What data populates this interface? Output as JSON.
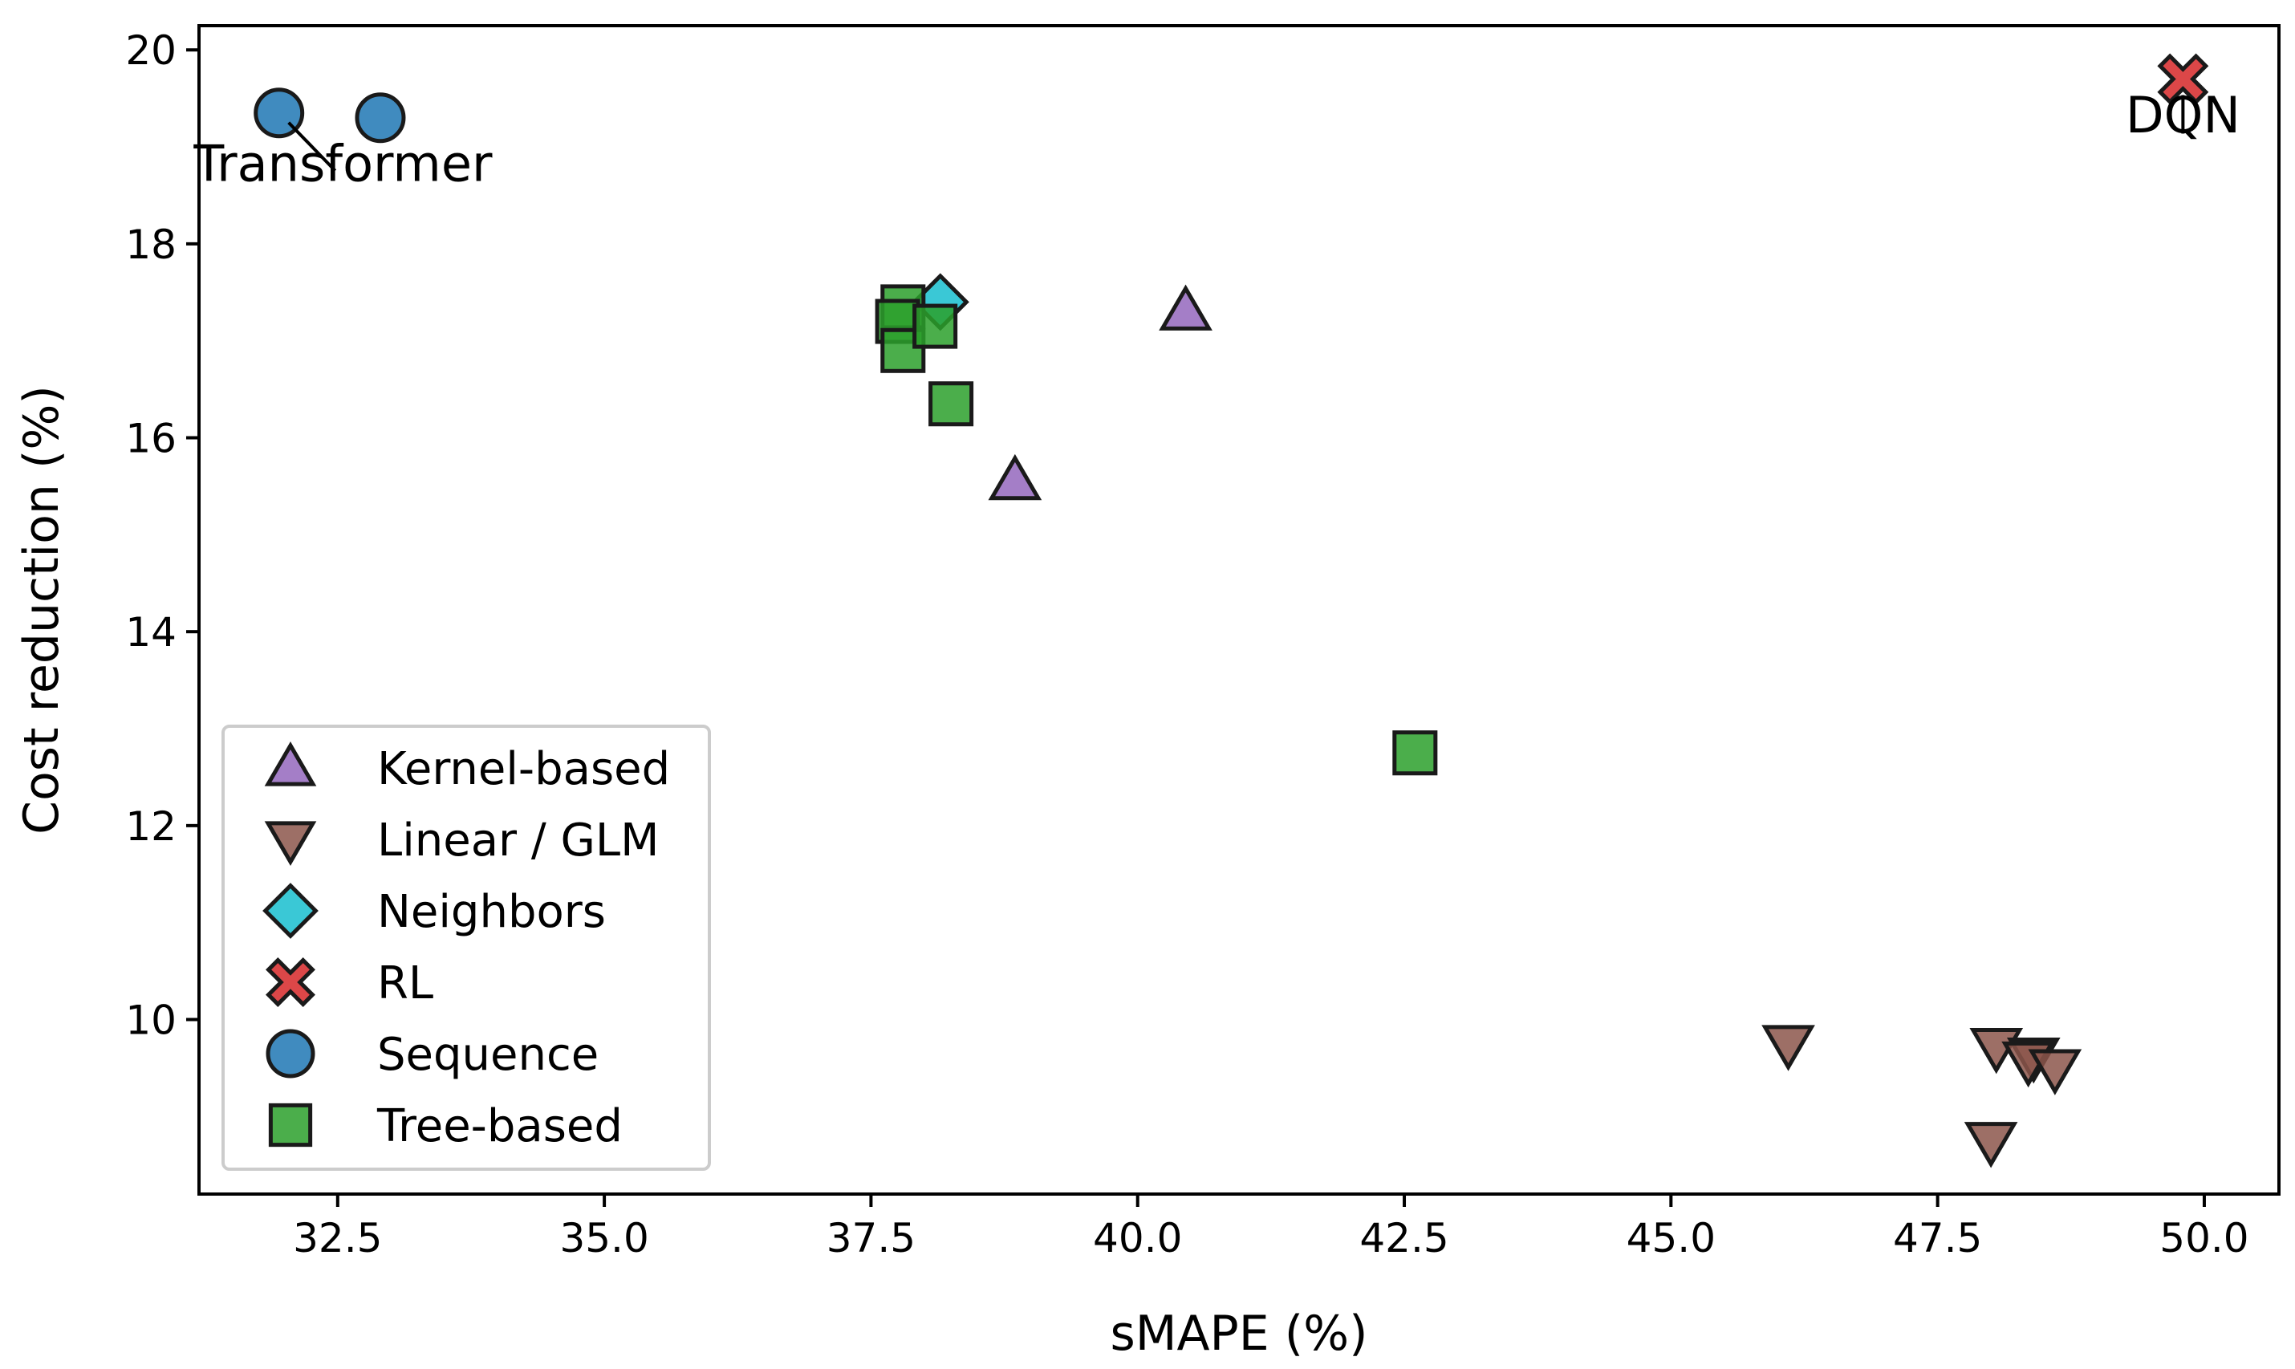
{
  "chart_data": {
    "type": "scatter",
    "title": "",
    "xlabel": "sMAPE (%)",
    "ylabel": "Cost reduction (%)",
    "xlim": [
      31.2,
      50.7
    ],
    "ylim": [
      8.2,
      20.25
    ],
    "xticks": [
      32.5,
      35.0,
      37.5,
      40.0,
      42.5,
      45.0,
      47.5,
      50.0
    ],
    "xtick_labels": [
      "32.5",
      "35.0",
      "37.5",
      "40.0",
      "42.5",
      "45.0",
      "47.5",
      "50.0"
    ],
    "yticks": [
      10,
      12,
      14,
      16,
      18,
      20
    ],
    "ytick_labels": [
      "10",
      "12",
      "14",
      "16",
      "18",
      "20"
    ],
    "grid": false,
    "legend_position": "lower-left",
    "series": [
      {
        "name": "Kernel-based",
        "marker": "triangle-up",
        "color": "#9467bd",
        "points": [
          [
            40.45,
            17.3
          ],
          [
            38.85,
            15.55
          ]
        ]
      },
      {
        "name": "Linear / GLM",
        "marker": "triangle-down",
        "color": "#8c564b",
        "points": [
          [
            46.1,
            9.75
          ],
          [
            48.05,
            9.72
          ],
          [
            48.4,
            9.62
          ],
          [
            48.35,
            9.58
          ],
          [
            48.6,
            9.5
          ],
          [
            48.0,
            8.75
          ]
        ]
      },
      {
        "name": "Neighbors",
        "marker": "diamond",
        "color": "#17becf",
        "points": [
          [
            38.15,
            17.4
          ]
        ]
      },
      {
        "name": "RL",
        "marker": "x",
        "color": "#d62728",
        "points": [
          [
            49.8,
            19.7
          ]
        ]
      },
      {
        "name": "Sequence",
        "marker": "circle",
        "color": "#1f77b4",
        "points": [
          [
            31.95,
            19.35
          ],
          [
            32.9,
            19.3
          ]
        ]
      },
      {
        "name": "Tree-based",
        "marker": "square",
        "color": "#2ca02c",
        "points": [
          [
            37.8,
            17.35
          ],
          [
            37.75,
            17.2
          ],
          [
            37.8,
            16.9
          ],
          [
            38.1,
            17.15
          ],
          [
            38.25,
            16.35
          ],
          [
            42.6,
            12.75
          ]
        ]
      }
    ],
    "annotations": [
      {
        "text": "Transformer",
        "point": [
          31.95,
          19.35
        ],
        "text_anchor_data": [
          32.55,
          18.65
        ]
      },
      {
        "text": "DQN",
        "point": [
          49.8,
          19.7
        ],
        "text_anchor_data": [
          49.8,
          19.15
        ]
      }
    ]
  }
}
